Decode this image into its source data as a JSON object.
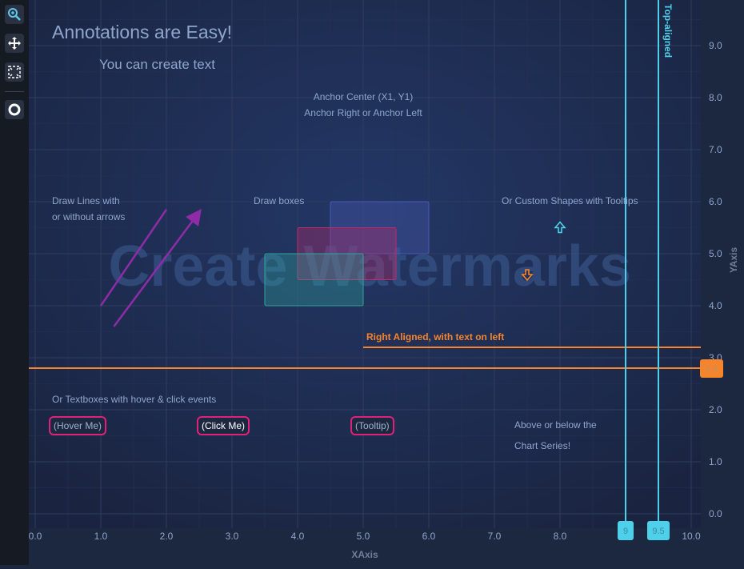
{
  "toolbar": {
    "items": [
      {
        "icon": "zoom-icon"
      },
      {
        "icon": "pan-icon"
      },
      {
        "icon": "zoom-extents-icon"
      },
      {
        "icon": "theme-icon"
      }
    ]
  },
  "chart_data": {
    "type": "scatter",
    "title": "Annotations are Easy!",
    "subtitle": "You can create text",
    "xlabel": "XAxis",
    "ylabel": "YAxis",
    "xlim": [
      0,
      10
    ],
    "ylim": [
      0,
      10
    ],
    "x_ticks": [
      "0.0",
      "1.0",
      "2.0",
      "3.0",
      "4.0",
      "5.0",
      "6.0",
      "7.0",
      "8.0",
      "9.0",
      "10.0"
    ],
    "y_ticks": [
      "0.0",
      "1.0",
      "2.0",
      "3.0",
      "4.0",
      "5.0",
      "6.0",
      "7.0",
      "8.0",
      "9.0",
      "10.0"
    ],
    "y_axis_position": "right",
    "grid": true,
    "watermark": "Create Watermarks",
    "text_annotations": {
      "anchor1": "Anchor Center (X1, Y1)",
      "anchor2": "Anchor Right  or Anchor Left",
      "lines1": "Draw Lines with",
      "lines2": "or without arrows",
      "boxes": "Draw boxes",
      "shapes": "Or Custom Shapes with Tooltips",
      "textboxes": "Or Textboxes with hover & click events",
      "above1": "Above or below the",
      "above2": "Chart Series!"
    },
    "textboxes": {
      "hover": "(Hover Me)",
      "click": "(Click Me)",
      "tooltip": "(Tooltip)"
    },
    "horizontal_lines": {
      "right_label": "Right Aligned, with text on left",
      "full_value": "2.8",
      "right_value": 3.2,
      "color": "#f5842c"
    },
    "vertical_lines": {
      "a_value": "9",
      "b_value": "9.5",
      "b_label": "Top-aligned",
      "color": "#4fd0ea"
    },
    "lines": [
      {
        "x1": 1.0,
        "y1": 4.0,
        "x2": 2.0,
        "y2": 5.85,
        "arrow": false
      },
      {
        "x1": 1.2,
        "y1": 3.6,
        "x2": 2.5,
        "y2": 5.8,
        "arrow": true
      }
    ],
    "boxes": [
      {
        "x1": 4.5,
        "y1": 5.0,
        "x2": 6.0,
        "y2": 6.0,
        "color": "#4a5bb5"
      },
      {
        "x1": 4.0,
        "y1": 4.5,
        "x2": 5.5,
        "y2": 5.5,
        "color": "#c02a6a"
      },
      {
        "x1": 3.5,
        "y1": 4.0,
        "x2": 5.0,
        "y2": 5.0,
        "color": "#2fa69a"
      }
    ],
    "shapes": [
      {
        "x": 8.0,
        "y": 5.5,
        "direction": "up",
        "color": "#4fd0ea"
      },
      {
        "x": 7.5,
        "y": 4.6,
        "direction": "down",
        "color": "#f5842c"
      }
    ]
  }
}
